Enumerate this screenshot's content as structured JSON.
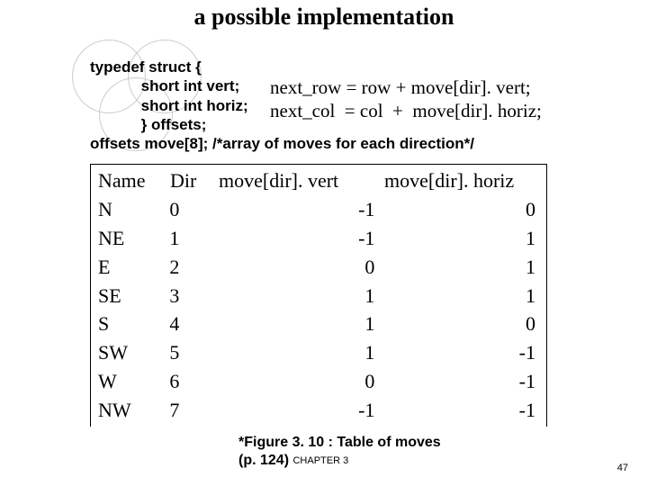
{
  "title": "a possible implementation",
  "code": {
    "l1": "typedef struct {",
    "l2": "            short int vert;",
    "l3": "            short int horiz;",
    "l4": "            } offsets;",
    "l5": "offsets move[8]; /*array of moves for each direction*/"
  },
  "eqs": {
    "l1": "next_row = row + move[dir]. vert;",
    "l2": "next_col  = col  +  move[dir]. horiz;"
  },
  "table": {
    "headers": {
      "name": "Name",
      "dir": "Dir",
      "vert": "move[dir]. vert",
      "horiz": "move[dir]. horiz"
    },
    "rows": [
      {
        "name": "N",
        "dir": "0",
        "vert": "-1",
        "horiz": "0"
      },
      {
        "name": "NE",
        "dir": "1",
        "vert": "-1",
        "horiz": "1"
      },
      {
        "name": "E",
        "dir": "2",
        "vert": "0",
        "horiz": "1"
      },
      {
        "name": "SE",
        "dir": "3",
        "vert": "1",
        "horiz": "1"
      },
      {
        "name": "S",
        "dir": "4",
        "vert": "1",
        "horiz": "0"
      },
      {
        "name": "SW",
        "dir": "5",
        "vert": "1",
        "horiz": "-1"
      },
      {
        "name": "W",
        "dir": "6",
        "vert": "0",
        "horiz": "-1"
      },
      {
        "name": "NW",
        "dir": "7",
        "vert": "-1",
        "horiz": "-1"
      }
    ]
  },
  "caption": {
    "line1": "*Figure 3. 10 : Table of moves",
    "line2_pre": "(p. 124) ",
    "chapter": "CHAPTER 3"
  },
  "pagenum": "47",
  "colors": {
    "text": "#000000",
    "bg": "#ffffff",
    "circle_border": "#cccccc",
    "table_border": "#000000"
  }
}
